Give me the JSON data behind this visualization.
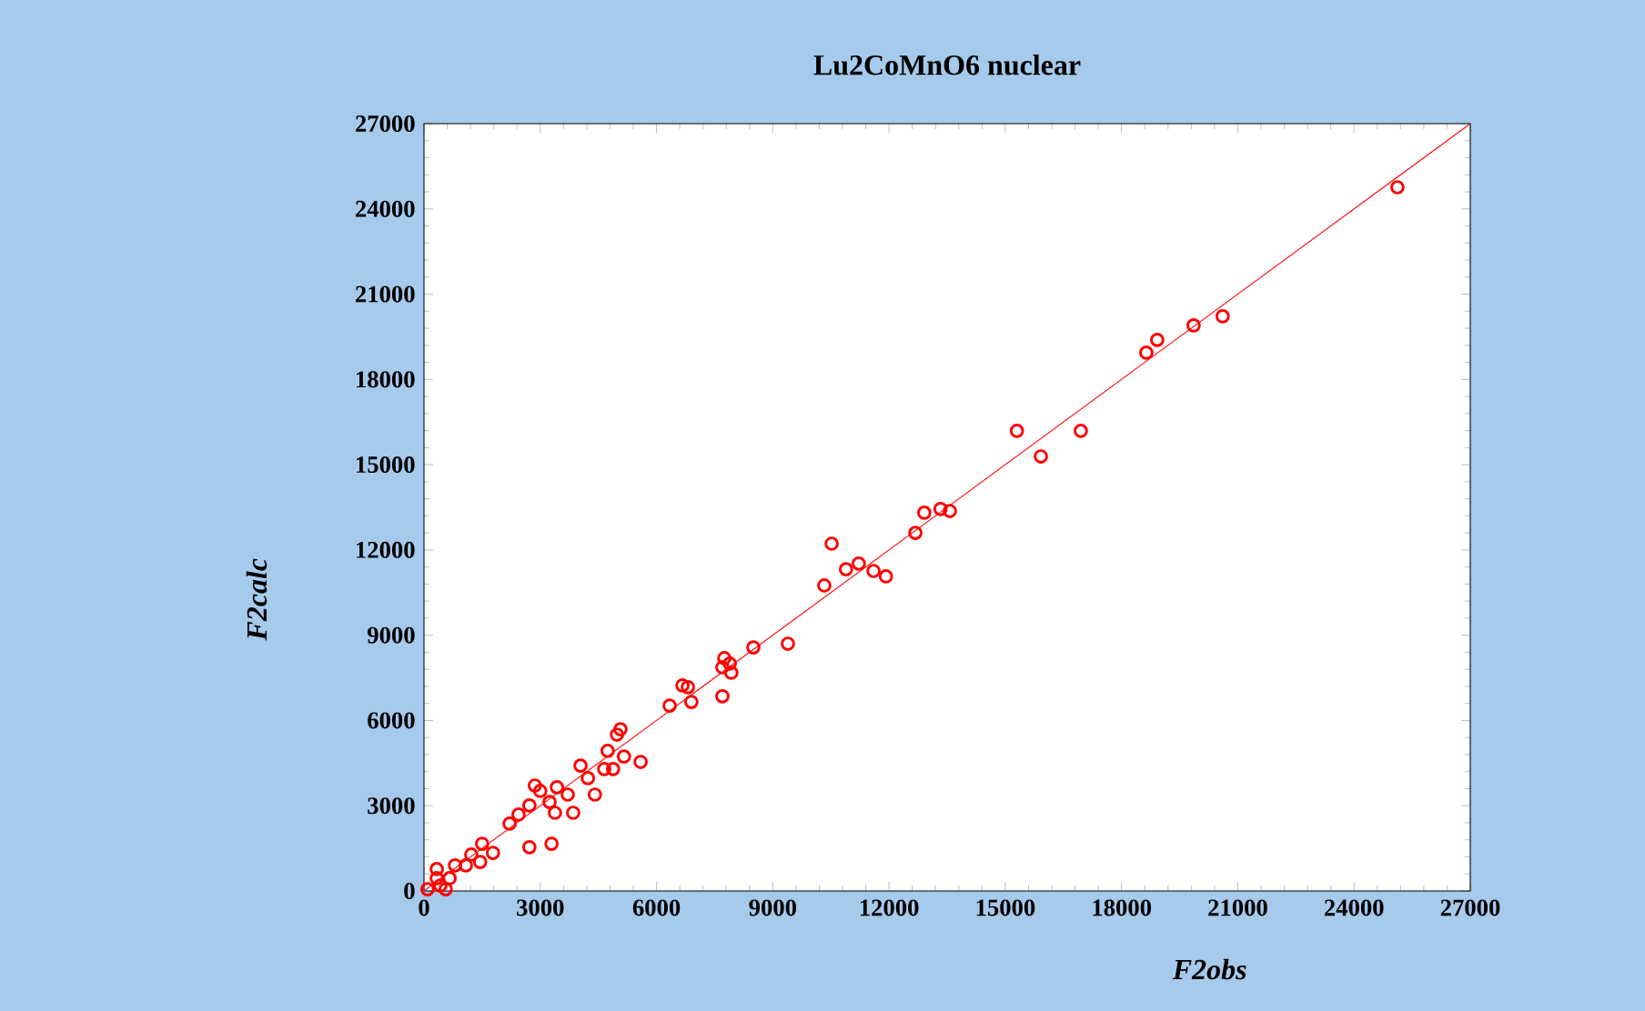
{
  "chart_data": {
    "type": "scatter",
    "title": "Lu2CoMnO6 nuclear",
    "xlabel": "F2obs",
    "ylabel": "F2calc",
    "xlim": [
      0,
      27000
    ],
    "ylim": [
      0,
      27000
    ],
    "xticks": [
      0,
      3000,
      6000,
      9000,
      12000,
      15000,
      18000,
      21000,
      24000,
      27000
    ],
    "yticks": [
      0,
      3000,
      6000,
      9000,
      12000,
      15000,
      18000,
      21000,
      24000,
      27000
    ],
    "marker": "circle",
    "grid": false,
    "series": [
      {
        "color": "#ff0000",
        "x": [
          25120,
          20610,
          19860,
          18920,
          18640,
          16950,
          15300,
          15920,
          13570,
          13330,
          12910,
          12680,
          10520,
          10330,
          10890,
          11220,
          11600,
          11920,
          9390,
          8500,
          7750,
          7890,
          7700,
          7930,
          7700,
          6670,
          6810,
          6900,
          6340,
          5070,
          4980,
          4740,
          5160,
          5590,
          4650,
          4230,
          4040,
          4410,
          4880,
          3710,
          3850,
          3380,
          3240,
          3000,
          2860,
          3430,
          2720,
          2440,
          2210,
          2720,
          3290,
          1780,
          1500,
          1220,
          1450,
          1080,
          800,
          330,
          660,
          330,
          90,
          560,
          420
        ],
        "values": [
          24760,
          20220,
          19900,
          19390,
          18940,
          16190,
          16190,
          15290,
          13370,
          13440,
          13310,
          12600,
          12220,
          10750,
          11320,
          11520,
          11260,
          11070,
          8700,
          8570,
          8190,
          8000,
          7870,
          7680,
          6850,
          7230,
          7170,
          6650,
          6520,
          5690,
          5500,
          4930,
          4730,
          4540,
          4290,
          3970,
          4410,
          3390,
          4290,
          3390,
          2750,
          2750,
          3130,
          3520,
          3710,
          3650,
          3010,
          2690,
          2370,
          1540,
          1660,
          1340,
          1660,
          1280,
          1020,
          900,
          900,
          770,
          450,
          450,
          60,
          60,
          190
        ]
      },
      {
        "type": "line",
        "color": "#ff0000",
        "x": [
          0,
          27000
        ],
        "values": [
          0,
          27000
        ],
        "marker": "none"
      }
    ]
  }
}
